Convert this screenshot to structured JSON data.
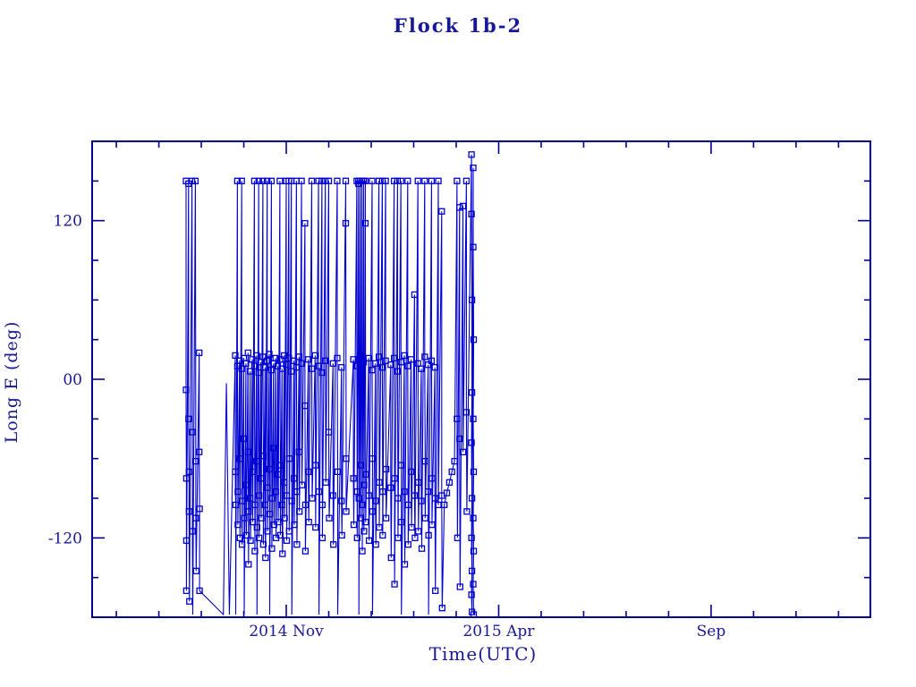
{
  "title": "Flock 1b-2",
  "colors": {
    "data": "#0000d2",
    "axis": "#000090",
    "text": "#181896",
    "background": "#ffffff"
  },
  "chart_data": {
    "type": "line",
    "title": "Flock 1b-2",
    "xlabel": "Time(UTC)",
    "ylabel": "Long E (deg)",
    "x_unit": "months since 2014-11-01",
    "x_axis": {
      "range": [
        -4.57,
        13.75
      ],
      "major_ticks": [
        {
          "value": 0,
          "label": "2014 Nov"
        },
        {
          "value": 5,
          "label": "2015 Apr"
        },
        {
          "value": 10,
          "label": "Sep"
        }
      ],
      "minor_tick_start": -4,
      "minor_tick_step": 1,
      "minor_tick_end": 13
    },
    "y_axis": {
      "range": [
        -180,
        180
      ],
      "major_ticks": [
        {
          "value": -120,
          "label": "-120"
        },
        {
          "value": 0,
          "label": "00"
        },
        {
          "value": 120,
          "label": "120"
        }
      ],
      "minor_tick_step": 30
    },
    "grid": false,
    "legend": null,
    "marker": "open-square",
    "marker_size": 6,
    "points": [
      [
        -2.36,
        150
      ],
      [
        -2.36,
        -8
      ],
      [
        -2.35,
        -75
      ],
      [
        -2.35,
        -122
      ],
      [
        -2.35,
        -160
      ],
      [
        -2.3,
        148
      ],
      [
        -2.3,
        -30
      ],
      [
        -2.29,
        -70
      ],
      [
        -2.29,
        -100
      ],
      [
        -2.28,
        -168
      ],
      [
        -2.22,
        150
      ],
      [
        -2.21,
        -40
      ],
      [
        -2.21,
        -115
      ],
      [
        -2.2,
        -178,
        0
      ],
      [
        -2.14,
        150
      ],
      [
        -2.13,
        -62
      ],
      [
        -2.13,
        -105
      ],
      [
        -2.12,
        -145
      ],
      [
        -2.05,
        20
      ],
      [
        -2.05,
        -55
      ],
      [
        -2.04,
        -98
      ],
      [
        -2.04,
        -160
      ],
      [
        -1.48,
        -178,
        0
      ],
      [
        -1.41,
        -3,
        0
      ],
      [
        -1.34,
        -178,
        0
      ],
      [
        -1.2,
        18
      ],
      [
        -1.2,
        -70
      ],
      [
        -1.19,
        -95
      ],
      [
        -1.19,
        -178,
        0
      ],
      [
        -1.15,
        150
      ],
      [
        -1.15,
        10
      ],
      [
        -1.14,
        -85
      ],
      [
        -1.14,
        -110
      ],
      [
        -1.1,
        14
      ],
      [
        -1.1,
        -60
      ],
      [
        -1.09,
        -120
      ],
      [
        -1.05,
        150
      ],
      [
        -1.05,
        8
      ],
      [
        -1.04,
        -92
      ],
      [
        -1.04,
        -125
      ],
      [
        -1.0,
        16
      ],
      [
        -1.0,
        -45
      ],
      [
        -0.99,
        -105
      ],
      [
        -0.99,
        -178,
        0
      ],
      [
        -0.95,
        12
      ],
      [
        -0.95,
        -80
      ],
      [
        -0.94,
        -118
      ],
      [
        -0.9,
        20
      ],
      [
        -0.9,
        -55
      ],
      [
        -0.89,
        -100
      ],
      [
        -0.89,
        -140
      ],
      [
        -0.85,
        6
      ],
      [
        -0.85,
        -90
      ],
      [
        -0.84,
        -122
      ],
      [
        -0.8,
        15
      ],
      [
        -0.8,
        -70
      ],
      [
        -0.79,
        -108
      ],
      [
        -0.75,
        150
      ],
      [
        -0.75,
        10
      ],
      [
        -0.74,
        -95
      ],
      [
        -0.74,
        -130
      ],
      [
        -0.7,
        18
      ],
      [
        -0.7,
        -62
      ],
      [
        -0.69,
        -112
      ],
      [
        -0.69,
        -178,
        0
      ],
      [
        -0.65,
        150
      ],
      [
        -0.65,
        5
      ],
      [
        -0.64,
        -88
      ],
      [
        -0.64,
        -120
      ],
      [
        -0.6,
        13
      ],
      [
        -0.6,
        -75
      ],
      [
        -0.59,
        -105
      ],
      [
        -0.55,
        150
      ],
      [
        -0.55,
        17
      ],
      [
        -0.54,
        -58
      ],
      [
        -0.54,
        -125
      ],
      [
        -0.5,
        9
      ],
      [
        -0.5,
        -95
      ],
      [
        -0.49,
        -135
      ],
      [
        -0.45,
        150
      ],
      [
        -0.45,
        14
      ],
      [
        -0.44,
        -82
      ],
      [
        -0.44,
        -115
      ],
      [
        -0.4,
        19
      ],
      [
        -0.4,
        -68
      ],
      [
        -0.39,
        -102
      ],
      [
        -0.39,
        -178,
        0
      ],
      [
        -0.35,
        150
      ],
      [
        -0.35,
        7
      ],
      [
        -0.34,
        -90
      ],
      [
        -0.34,
        -128
      ],
      [
        -0.3,
        12
      ],
      [
        -0.3,
        -52
      ],
      [
        -0.29,
        -110
      ],
      [
        -0.25,
        16
      ],
      [
        -0.25,
        -85
      ],
      [
        -0.24,
        -120
      ],
      [
        -0.2,
        10
      ],
      [
        -0.2,
        -72
      ],
      [
        -0.19,
        -108
      ],
      [
        -0.15,
        150
      ],
      [
        -0.15,
        15
      ],
      [
        -0.14,
        -65
      ],
      [
        -0.14,
        -118
      ],
      [
        -0.1,
        8
      ],
      [
        -0.1,
        -95
      ],
      [
        -0.09,
        -132
      ],
      [
        -0.05,
        18
      ],
      [
        -0.05,
        -78
      ],
      [
        -0.04,
        -105
      ],
      [
        0.0,
        150
      ],
      [
        0.0,
        11
      ],
      [
        0.01,
        -88
      ],
      [
        0.01,
        -122
      ],
      [
        0.06,
        150
      ],
      [
        0.06,
        16
      ],
      [
        0.07,
        -60
      ],
      [
        0.07,
        -115
      ],
      [
        0.12,
        150
      ],
      [
        0.12,
        6
      ],
      [
        0.13,
        -92
      ],
      [
        0.13,
        -178,
        0
      ],
      [
        0.18,
        14
      ],
      [
        0.18,
        -75
      ],
      [
        0.19,
        -110
      ],
      [
        0.24,
        150
      ],
      [
        0.24,
        9
      ],
      [
        0.25,
        -85
      ],
      [
        0.25,
        -125
      ],
      [
        0.3,
        17
      ],
      [
        0.3,
        -55
      ],
      [
        0.31,
        -100
      ],
      [
        0.36,
        150
      ],
      [
        0.36,
        12
      ],
      [
        0.37,
        -80
      ],
      [
        0.44,
        118
      ],
      [
        0.44,
        -20
      ],
      [
        0.45,
        -95
      ],
      [
        0.45,
        -130
      ],
      [
        0.52,
        15
      ],
      [
        0.52,
        -70
      ],
      [
        0.53,
        -108
      ],
      [
        0.6,
        150
      ],
      [
        0.6,
        8
      ],
      [
        0.61,
        -90
      ],
      [
        0.68,
        18
      ],
      [
        0.69,
        -65
      ],
      [
        0.69,
        -112
      ],
      [
        0.76,
        150
      ],
      [
        0.76,
        10
      ],
      [
        0.77,
        -85
      ],
      [
        0.77,
        -178,
        0
      ],
      [
        0.84,
        150
      ],
      [
        0.84,
        5
      ],
      [
        0.85,
        -95
      ],
      [
        0.85,
        -120
      ],
      [
        0.92,
        150
      ],
      [
        0.92,
        14
      ],
      [
        0.93,
        -78
      ],
      [
        1.0,
        150
      ],
      [
        1.0,
        -40
      ],
      [
        1.01,
        -105
      ],
      [
        1.1,
        12
      ],
      [
        1.1,
        -88
      ],
      [
        1.11,
        -125
      ],
      [
        1.2,
        150
      ],
      [
        1.2,
        16
      ],
      [
        1.21,
        -70
      ],
      [
        1.21,
        -178,
        0
      ],
      [
        1.3,
        9
      ],
      [
        1.3,
        -92
      ],
      [
        1.31,
        -118
      ],
      [
        1.4,
        150
      ],
      [
        1.4,
        118
      ],
      [
        1.41,
        -60
      ],
      [
        1.41,
        -100
      ],
      [
        1.58,
        15
      ],
      [
        1.58,
        -75
      ],
      [
        1.59,
        -110
      ],
      [
        1.66,
        150
      ],
      [
        1.66,
        10
      ],
      [
        1.67,
        -85
      ],
      [
        1.67,
        -120
      ],
      [
        1.7,
        150
      ],
      [
        1.7,
        148
      ],
      [
        1.71,
        -90
      ],
      [
        1.71,
        -178,
        0
      ],
      [
        1.74,
        150
      ],
      [
        1.74,
        18
      ],
      [
        1.75,
        -65
      ],
      [
        1.75,
        -105
      ],
      [
        1.78,
        150
      ],
      [
        1.78,
        8
      ],
      [
        1.79,
        -95
      ],
      [
        1.79,
        -130
      ],
      [
        1.82,
        150
      ],
      [
        1.82,
        13
      ],
      [
        1.83,
        -80
      ],
      [
        1.83,
        -115
      ],
      [
        1.86,
        150
      ],
      [
        1.86,
        118
      ],
      [
        1.87,
        -72
      ],
      [
        1.87,
        -108
      ],
      [
        1.94,
        16
      ],
      [
        1.94,
        -88
      ],
      [
        1.95,
        -122
      ],
      [
        2.02,
        150
      ],
      [
        2.02,
        7
      ],
      [
        2.03,
        -60
      ],
      [
        2.03,
        -100
      ],
      [
        2.03,
        -178,
        0
      ],
      [
        2.1,
        12
      ],
      [
        2.1,
        -92
      ],
      [
        2.11,
        -125
      ],
      [
        2.18,
        150
      ],
      [
        2.18,
        17
      ],
      [
        2.19,
        -78
      ],
      [
        2.19,
        -112
      ],
      [
        2.26,
        150
      ],
      [
        2.26,
        9
      ],
      [
        2.27,
        -85
      ],
      [
        2.27,
        -118
      ],
      [
        2.34,
        150
      ],
      [
        2.34,
        14
      ],
      [
        2.35,
        -68
      ],
      [
        2.35,
        -105
      ],
      [
        2.46,
        11
      ],
      [
        2.46,
        -82
      ],
      [
        2.47,
        -135
      ],
      [
        2.54,
        150
      ],
      [
        2.54,
        16
      ],
      [
        2.55,
        -75
      ],
      [
        2.55,
        -155
      ],
      [
        2.62,
        150
      ],
      [
        2.62,
        6
      ],
      [
        2.63,
        -90
      ],
      [
        2.63,
        -120
      ],
      [
        2.7,
        150
      ],
      [
        2.7,
        13
      ],
      [
        2.71,
        -65
      ],
      [
        2.71,
        -108
      ],
      [
        2.71,
        -178,
        0
      ],
      [
        2.78,
        18
      ],
      [
        2.78,
        -85
      ],
      [
        2.79,
        -140
      ],
      [
        2.86,
        150
      ],
      [
        2.86,
        10
      ],
      [
        2.87,
        -95
      ],
      [
        2.87,
        -125
      ],
      [
        2.94,
        15
      ],
      [
        2.94,
        -70
      ],
      [
        2.95,
        -112
      ],
      [
        3.02,
        64
      ],
      [
        3.02,
        -88
      ],
      [
        3.03,
        -120
      ],
      [
        3.1,
        150
      ],
      [
        3.1,
        12
      ],
      [
        3.11,
        -78
      ],
      [
        3.11,
        -115
      ],
      [
        3.18,
        8
      ],
      [
        3.18,
        -92
      ],
      [
        3.19,
        -128
      ],
      [
        3.26,
        150
      ],
      [
        3.26,
        17
      ],
      [
        3.27,
        -62
      ],
      [
        3.27,
        -105
      ],
      [
        3.34,
        11
      ],
      [
        3.34,
        -85
      ],
      [
        3.35,
        -118
      ],
      [
        3.35,
        -178,
        0
      ],
      [
        3.42,
        150
      ],
      [
        3.42,
        14
      ],
      [
        3.43,
        -75
      ],
      [
        3.43,
        -110
      ],
      [
        3.5,
        9
      ],
      [
        3.5,
        -90
      ],
      [
        3.51,
        -160
      ],
      [
        3.58,
        150
      ],
      [
        3.58,
        -95
      ],
      [
        3.66,
        127
      ],
      [
        3.66,
        -88
      ],
      [
        3.67,
        -173
      ],
      [
        3.72,
        -95
      ],
      [
        3.78,
        -86
      ],
      [
        3.84,
        -78
      ],
      [
        3.9,
        -70
      ],
      [
        3.96,
        -62
      ],
      [
        4.02,
        150
      ],
      [
        4.02,
        -30
      ],
      [
        4.03,
        -120
      ],
      [
        4.08,
        130
      ],
      [
        4.08,
        -45
      ],
      [
        4.09,
        -157
      ],
      [
        4.16,
        131
      ],
      [
        4.16,
        -55
      ],
      [
        4.24,
        150
      ],
      [
        4.24,
        -25
      ],
      [
        4.25,
        -100
      ],
      [
        4.36,
        170
      ],
      [
        4.36,
        125
      ],
      [
        4.37,
        60
      ],
      [
        4.37,
        -10
      ],
      [
        4.36,
        -48
      ],
      [
        4.37,
        -90
      ],
      [
        4.36,
        -120
      ],
      [
        4.37,
        -145
      ],
      [
        4.36,
        -163
      ],
      [
        4.37,
        -176
      ],
      [
        4.4,
        160
      ],
      [
        4.4,
        100
      ],
      [
        4.41,
        30
      ],
      [
        4.4,
        -30
      ],
      [
        4.41,
        -70
      ],
      [
        4.4,
        -105
      ],
      [
        4.41,
        -130
      ],
      [
        4.4,
        -155
      ],
      [
        4.41,
        -178
      ]
    ]
  }
}
